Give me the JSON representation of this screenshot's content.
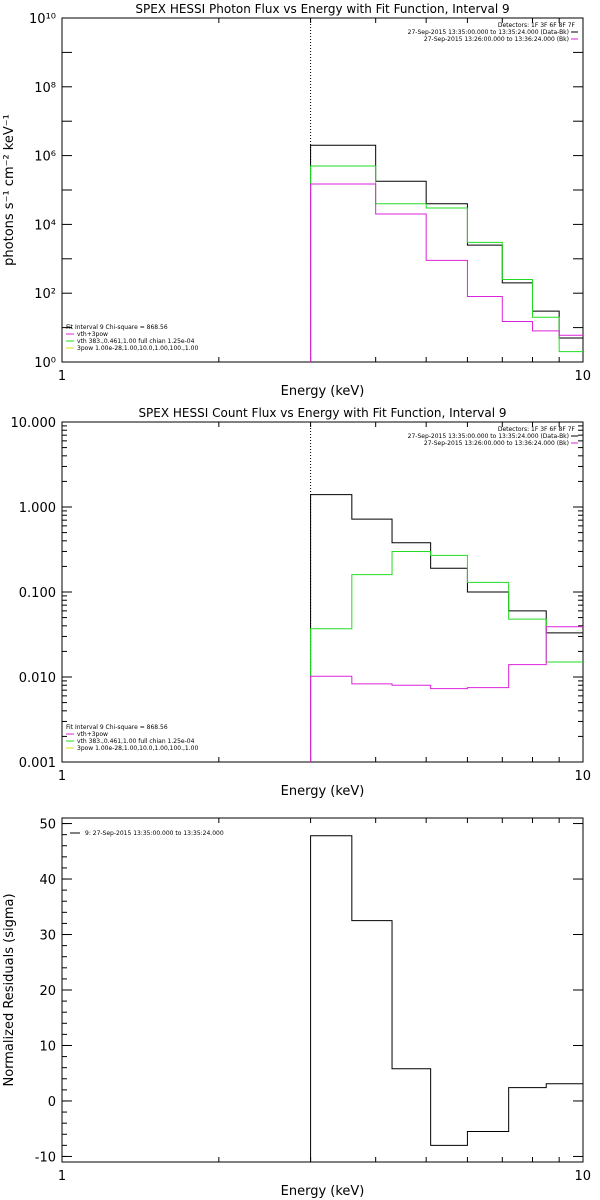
{
  "chart_data": [
    {
      "type": "line",
      "title": "SPEX HESSI Photon Flux vs Energy with Fit Function, Interval 9",
      "xlabel": "Energy (keV)",
      "ylabel": "photons s⁻¹ cm⁻² keV⁻¹",
      "x_scale": "log",
      "y_scale": "log",
      "xlim": [
        1,
        10
      ],
      "ylim": [
        1,
        10000000000.0
      ],
      "x_ticks": [
        1,
        10
      ],
      "x_tick_labels": [
        "1",
        "10"
      ],
      "y_ticks": [
        1,
        100,
        10000,
        1000000,
        100000000,
        10000000000
      ],
      "y_tick_labels": [
        "10⁰",
        "10²",
        "10⁴",
        "10⁶",
        "10⁸",
        "10¹⁰"
      ],
      "vline_x": 3,
      "legend": {
        "position": "top-right",
        "lines": [
          "Detectors: 1F 3F 6F 8F 7F",
          "27-Sep-2015 13:35:00.000 to 13:35:24.000 (Data-Bk)",
          "27-Sep-2015 13:26:00.000 to 13:36:24.000 (Bk)"
        ]
      },
      "fit_text": {
        "position": "bottom-left",
        "lines": [
          "Fit Interval 9    Chi-square = 868.56",
          "vth+3pow",
          "vth 383.,0.461,1.00  full chian 1.25e-04",
          "3pow 1.00e-28,1.00,10.0,1.00,100.,1.00"
        ]
      },
      "series": [
        {
          "color": "#000000",
          "edges": [
            3,
            4,
            5,
            6,
            7,
            8,
            9,
            10
          ],
          "values": [
            2000000,
            180000,
            40000,
            2500,
            200,
            30,
            5
          ]
        },
        {
          "color": "#22dd22",
          "edges": [
            3,
            4,
            5,
            6,
            7,
            8,
            9,
            10
          ],
          "values": [
            500000,
            40000,
            30000,
            3000,
            250,
            20,
            2
          ]
        },
        {
          "color": "#dd22dd",
          "edges": [
            3,
            4,
            5,
            6,
            7,
            8,
            9,
            10
          ],
          "values": [
            150000,
            20000,
            900,
            80,
            15,
            8,
            6
          ]
        }
      ]
    },
    {
      "type": "line",
      "title": "SPEX HESSI Count Flux vs Energy with Fit Function, Interval 9",
      "xlabel": "Energy (keV)",
      "ylabel": "",
      "x_scale": "log",
      "y_scale": "log",
      "xlim": [
        1,
        10
      ],
      "ylim": [
        0.001,
        10
      ],
      "x_ticks": [
        1,
        10
      ],
      "x_tick_labels": [
        "1",
        "10"
      ],
      "y_ticks": [
        0.001,
        0.01,
        0.1,
        1,
        10
      ],
      "y_tick_labels": [
        "0.001",
        "0.010",
        "0.100",
        "1.000",
        "10.000"
      ],
      "vline_x": 3,
      "legend": {
        "position": "top-right",
        "lines": [
          "Detectors: 1F 3F 6F 8F 7F",
          "27-Sep-2015 13:35:00.000 to 13:35:24.000 (Data-Bk)",
          "27-Sep-2015 13:26:00.000 to 13:36:24.000 (Bk)"
        ]
      },
      "fit_text": {
        "position": "bottom-left",
        "lines": [
          "Fit Interval 9    Chi-square = 868.56",
          "vth+3pow",
          "vth 383.,0.461,1.00  full chian 1.25e-04",
          "3pow 1.00e-28,1.00,10.0,1.00,100.,1.00"
        ]
      },
      "series": [
        {
          "color": "#000000",
          "edges": [
            3,
            3.6,
            4.3,
            5.1,
            6,
            7.2,
            8.5,
            10
          ],
          "values": [
            1.4,
            0.72,
            0.38,
            0.19,
            0.1,
            0.06,
            0.033
          ]
        },
        {
          "color": "#22dd22",
          "edges": [
            3,
            3.6,
            4.3,
            5.1,
            6,
            7.2,
            8.5,
            10
          ],
          "values": [
            0.037,
            0.16,
            0.3,
            0.27,
            0.13,
            0.048,
            0.015
          ]
        },
        {
          "color": "#dd22dd",
          "edges": [
            3,
            3.6,
            4.3,
            5.1,
            6,
            7.2,
            8.5,
            10
          ],
          "values": [
            0.0102,
            0.0083,
            0.008,
            0.0073,
            0.0075,
            0.014,
            0.039
          ]
        }
      ]
    },
    {
      "type": "line",
      "title": "",
      "xlabel": "Energy (keV)",
      "ylabel": "Normalized Residuals (sigma)",
      "x_scale": "log",
      "y_scale": "linear",
      "xlim": [
        1,
        10
      ],
      "ylim": [
        -11,
        51
      ],
      "x_ticks": [
        1,
        10
      ],
      "x_tick_labels": [
        "1",
        "10"
      ],
      "y_ticks": [
        -10,
        0,
        10,
        20,
        30,
        40,
        50
      ],
      "y_tick_labels": [
        "-10",
        "0",
        "10",
        "20",
        "30",
        "40",
        "50"
      ],
      "legend": {
        "position": "top-left",
        "lines": [
          "9: 27-Sep-2015 13:35:00.000 to 13:35:24.000"
        ]
      },
      "series": [
        {
          "color": "#000000",
          "edges": [
            3,
            3.6,
            4.3,
            5.1,
            6,
            7.2,
            8.5,
            10
          ],
          "values": [
            47.8,
            32.5,
            5.8,
            -8.0,
            -5.5,
            2.4,
            3.1
          ]
        }
      ]
    }
  ]
}
